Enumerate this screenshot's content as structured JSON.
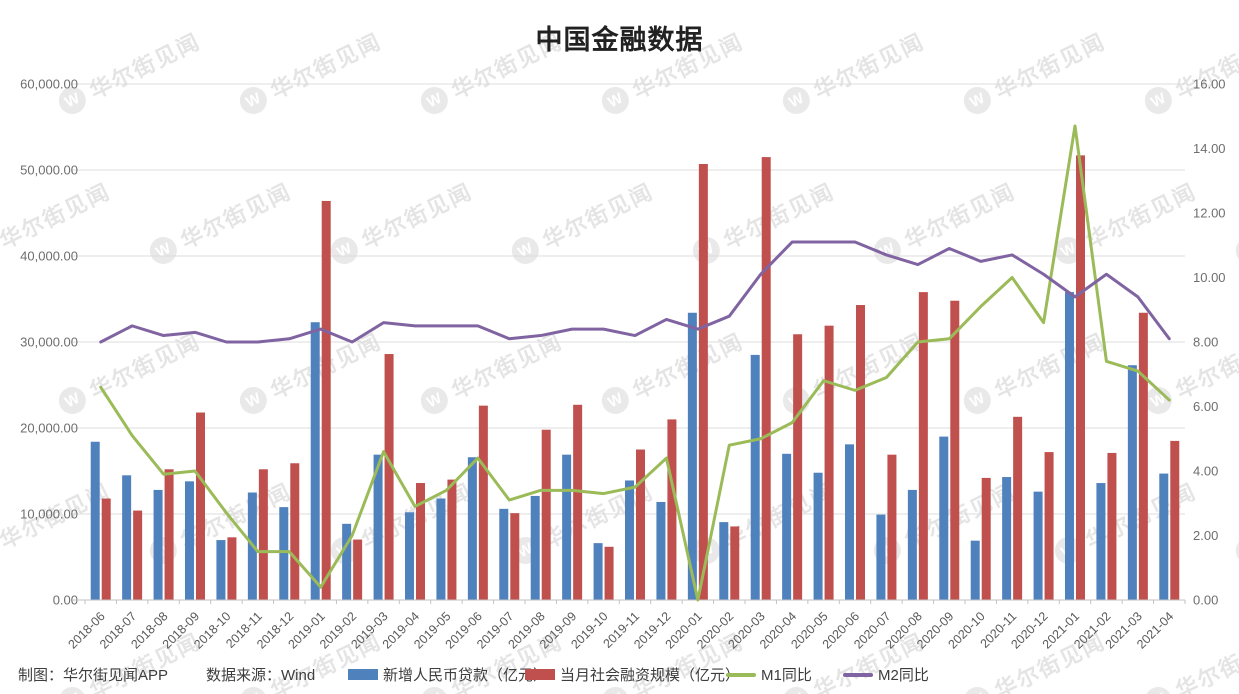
{
  "title": "中国金融数据",
  "watermark": {
    "logo": "W",
    "text": "华尔街见闻"
  },
  "footer": {
    "credit": "制图：华尔街见闻APP",
    "source": "数据来源：Wind"
  },
  "legend": [
    {
      "label": "新增人民币贷款（亿元）",
      "type": "bar",
      "color": "#4f81bd"
    },
    {
      "label": "当月社会融资规模（亿元）",
      "type": "bar",
      "color": "#c0504d"
    },
    {
      "label": "M1同比",
      "type": "line",
      "color": "#9bbb59"
    },
    {
      "label": "M2同比",
      "type": "line",
      "color": "#8064a2"
    }
  ],
  "colors": {
    "loans_bar": "#4f81bd",
    "tsf_bar": "#c0504d",
    "m1_line": "#9bbb59",
    "m2_line": "#8064a2",
    "gridline": "#dcdcdc",
    "axis_line": "#c2c2c2",
    "tick_label": "#6e6e6e",
    "x_label": "#595959"
  },
  "chart_data": {
    "type": "bar+line",
    "categories": [
      "2018-06",
      "2018-07",
      "2018-08",
      "2018-09",
      "2018-10",
      "2018-11",
      "2018-12",
      "2019-01",
      "2019-02",
      "2019-03",
      "2019-04",
      "2019-05",
      "2019-06",
      "2019-07",
      "2019-08",
      "2019-09",
      "2019-10",
      "2019-11",
      "2019-12",
      "2020-01",
      "2020-02",
      "2020-03",
      "2020-04",
      "2020-05",
      "2020-06",
      "2020-07",
      "2020-08",
      "2020-09",
      "2020-10",
      "2020-11",
      "2020-12",
      "2021-01",
      "2021-02",
      "2021-03",
      "2021-04"
    ],
    "series": [
      {
        "name": "新增人民币贷款（亿元）",
        "type": "bar",
        "axis": "left",
        "color": "#4f81bd",
        "values": [
          18400,
          14500,
          12800,
          13800,
          6970,
          12500,
          10800,
          32300,
          8858,
          16900,
          10200,
          11800,
          16600,
          10600,
          12100,
          16900,
          6613,
          13900,
          11400,
          33400,
          9057,
          28500,
          17000,
          14800,
          18100,
          9927,
          12800,
          19000,
          6898,
          14300,
          12600,
          35800,
          13600,
          27300,
          14700
        ]
      },
      {
        "name": "当月社会融资规模（亿元）",
        "type": "bar",
        "axis": "left",
        "color": "#c0504d",
        "values": [
          11800,
          10400,
          15200,
          21800,
          7288,
          15200,
          15900,
          46400,
          7030,
          28600,
          13600,
          14000,
          22600,
          10100,
          19800,
          22700,
          6189,
          17500,
          21000,
          50700,
          8554,
          51500,
          30900,
          31900,
          34300,
          16900,
          35800,
          34800,
          14200,
          21300,
          17200,
          51700,
          17100,
          33400,
          18500
        ]
      },
      {
        "name": "M1同比",
        "type": "line",
        "axis": "right",
        "color": "#9bbb59",
        "values": [
          6.6,
          5.1,
          3.9,
          4.0,
          2.7,
          1.5,
          1.5,
          0.4,
          2.0,
          4.6,
          2.9,
          3.4,
          4.4,
          3.1,
          3.4,
          3.4,
          3.3,
          3.5,
          4.4,
          0.0,
          4.8,
          5.0,
          5.5,
          6.8,
          6.5,
          6.9,
          8.0,
          8.1,
          9.1,
          10.0,
          8.6,
          14.7,
          7.4,
          7.1,
          6.2
        ]
      },
      {
        "name": "M2同比",
        "type": "line",
        "axis": "right",
        "color": "#8064a2",
        "values": [
          8.0,
          8.5,
          8.2,
          8.3,
          8.0,
          8.0,
          8.1,
          8.4,
          8.0,
          8.6,
          8.5,
          8.5,
          8.5,
          8.1,
          8.2,
          8.4,
          8.4,
          8.2,
          8.7,
          8.4,
          8.8,
          10.1,
          11.1,
          11.1,
          11.1,
          10.7,
          10.4,
          10.9,
          10.5,
          10.7,
          10.1,
          9.4,
          10.1,
          9.4,
          8.1
        ]
      }
    ],
    "left_axis": {
      "min": 0,
      "max": 60000,
      "step": 10000,
      "tick_labels": [
        "0.00",
        "10,000.00",
        "20,000.00",
        "30,000.00",
        "40,000.00",
        "50,000.00",
        "60,000.00"
      ]
    },
    "right_axis": {
      "min": 0,
      "max": 16,
      "step": 2,
      "tick_labels": [
        "0.00",
        "2.00",
        "4.00",
        "6.00",
        "8.00",
        "10.00",
        "12.00",
        "14.00",
        "16.00"
      ]
    },
    "grid": "horizontal",
    "legend_position": "bottom"
  }
}
